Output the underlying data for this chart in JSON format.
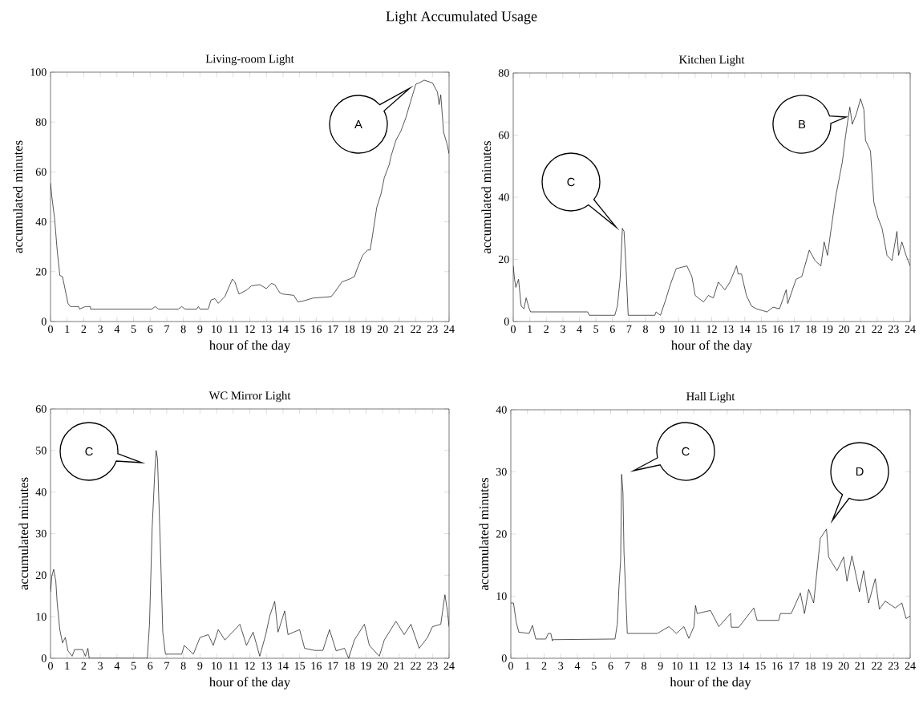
{
  "chart_data": [
    {
      "type": "line",
      "title": "Living-room Light",
      "xlabel": "hour of the day",
      "ylabel": "accumulated minutes",
      "xlim": [
        0,
        24
      ],
      "xticks": [
        0,
        1,
        2,
        3,
        4,
        5,
        6,
        7,
        8,
        9,
        10,
        11,
        12,
        13,
        14,
        15,
        16,
        17,
        18,
        19,
        20,
        21,
        22,
        23,
        24
      ],
      "ylim": [
        0,
        100
      ],
      "yticks": [
        0,
        20,
        40,
        60,
        80,
        100
      ],
      "annotations": [
        "Light Accumulated Usage",
        "A"
      ],
      "series": [
        {
          "color": "#000000",
          "x": [
            0,
            0.08,
            0.24,
            0.4,
            0.56,
            0.72,
            0.89,
            1.05,
            1.2,
            1.7,
            1.74,
            2.1,
            2.4,
            2.41,
            6.1,
            6.3,
            6.5,
            7.7,
            7.9,
            8.1,
            8.8,
            8.9,
            9.0,
            9.5,
            9.66,
            9.9,
            10.1,
            10.5,
            10.6,
            10.95,
            11.1,
            11.35,
            11.8,
            12.1,
            12.6,
            13.0,
            13.3,
            13.5,
            13.8,
            14.0,
            14.65,
            14.9,
            15.3,
            15.8,
            16.9,
            17.15,
            17.55,
            18.0,
            18.3,
            18.5,
            18.8,
            19.1,
            19.25,
            19.4,
            19.65,
            19.9,
            20.1,
            20.4,
            20.5,
            20.8,
            21.1,
            21.4,
            21.66,
            22.0,
            22.2,
            22.5,
            23.0,
            23.3,
            23.4,
            23.5,
            23.67,
            23.86,
            24
          ],
          "values": [
            55.5,
            50,
            41.6,
            28.7,
            18.5,
            18,
            12.6,
            7.3,
            6,
            6,
            5,
            6,
            6,
            5,
            5,
            6,
            5,
            5,
            6,
            5,
            5,
            6,
            5,
            5,
            8.6,
            9.2,
            7.3,
            10,
            11.6,
            17,
            15.9,
            11,
            12.6,
            14.3,
            14.8,
            13.2,
            15.3,
            14.8,
            11.6,
            11,
            10.5,
            7.8,
            8.4,
            9.4,
            10,
            12.1,
            15.9,
            17,
            18,
            21.8,
            26.6,
            28.7,
            28.7,
            35,
            45.9,
            51.2,
            57.7,
            63,
            66.2,
            72.7,
            76.4,
            81.8,
            87.7,
            95.2,
            95.7,
            96.8,
            95.7,
            92,
            87,
            90.9,
            75.9,
            71.6,
            67.3
          ]
        }
      ]
    },
    {
      "type": "line",
      "title": "Kitchen Light",
      "xlabel": "hour of the day",
      "ylabel": "accumulated minutes",
      "xlim": [
        0,
        24
      ],
      "xticks": [
        0,
        1,
        2,
        3,
        4,
        5,
        6,
        7,
        8,
        9,
        10,
        11,
        12,
        13,
        14,
        15,
        16,
        17,
        18,
        19,
        20,
        21,
        22,
        23,
        24
      ],
      "ylim": [
        0,
        80
      ],
      "yticks": [
        0,
        20,
        40,
        60,
        80
      ],
      "annotations": [
        "C",
        "B"
      ],
      "series": [
        {
          "color": "#000000",
          "x": [
            0,
            0.08,
            0.16,
            0.32,
            0.48,
            0.65,
            0.78,
            0.97,
            1.05,
            4.5,
            4.6,
            6.14,
            6.3,
            6.46,
            6.6,
            6.7,
            6.8,
            6.95,
            8.56,
            8.64,
            8.9,
            9.2,
            9.5,
            9.85,
            10.2,
            10.5,
            10.8,
            11.0,
            11.5,
            11.8,
            12.1,
            12.4,
            12.8,
            13.1,
            13.5,
            13.6,
            13.8,
            14.1,
            14.4,
            14.7,
            15.35,
            15.7,
            16.1,
            16.5,
            16.6,
            17.1,
            17.45,
            17.9,
            18.25,
            18.6,
            18.8,
            19.0,
            19.2,
            19.5,
            19.9,
            20.1,
            20.35,
            20.5,
            20.75,
            21.0,
            21.2,
            21.3,
            21.6,
            21.8,
            22.05,
            22.3,
            22.6,
            22.9,
            23.2,
            23.3,
            23.5,
            23.75,
            24
          ],
          "values": [
            17.9,
            13.6,
            11,
            13.6,
            5,
            4.1,
            7.6,
            4.1,
            3.1,
            3.1,
            2,
            2,
            5,
            13.6,
            30,
            29,
            19.6,
            2,
            2,
            3.1,
            2,
            6.7,
            11.9,
            17,
            17.5,
            17.9,
            14.5,
            8.4,
            6.3,
            8.4,
            7.6,
            12.7,
            10.2,
            12.7,
            17.9,
            15.3,
            15.3,
            8.4,
            5,
            4.1,
            3.1,
            4.6,
            4.1,
            10.2,
            5.8,
            13.6,
            14.5,
            23,
            19.6,
            17.9,
            25.6,
            21.3,
            29,
            40.3,
            51.4,
            60,
            69,
            63.5,
            66.9,
            71.7,
            68.2,
            58.3,
            54.9,
            38.5,
            33.4,
            30,
            21.3,
            19.6,
            29,
            21.3,
            25.6,
            21.3,
            17.9
          ]
        }
      ]
    },
    {
      "type": "line",
      "title": "WC Mirror Light",
      "xlabel": "hour of the day",
      "ylabel": "accumulated minutes",
      "xlim": [
        0,
        24
      ],
      "xticks": [
        0,
        1,
        2,
        3,
        4,
        5,
        6,
        7,
        8,
        9,
        10,
        11,
        12,
        13,
        14,
        15,
        16,
        17,
        18,
        19,
        20,
        21,
        22,
        23,
        24
      ],
      "ylim": [
        0,
        60
      ],
      "yticks": [
        0,
        10,
        20,
        30,
        40,
        50,
        60
      ],
      "annotations": [
        "C"
      ],
      "series": [
        {
          "color": "#000000",
          "x": [
            0,
            0.08,
            0.19,
            0.32,
            0.4,
            0.56,
            0.72,
            0.89,
            1.05,
            1.3,
            1.45,
            1.93,
            2.1,
            2.25,
            2.33,
            5.83,
            5.96,
            6.12,
            6.28,
            6.36,
            6.44,
            6.6,
            6.76,
            6.92,
            7.9,
            8.05,
            8.6,
            9.0,
            9.5,
            9.8,
            10.1,
            10.5,
            11.1,
            11.4,
            11.8,
            12.2,
            12.6,
            12.96,
            13.2,
            13.5,
            13.7,
            14.1,
            14.3,
            15.0,
            15.3,
            15.9,
            16.4,
            16.8,
            17.2,
            17.7,
            17.95,
            18.3,
            18.9,
            19.2,
            19.8,
            20.1,
            20.8,
            21.3,
            21.7,
            22.2,
            22.7,
            23.0,
            23.5,
            23.75,
            23.9,
            24
          ],
          "values": [
            16,
            19.8,
            21.4,
            18.5,
            13.4,
            6.9,
            3.7,
            5,
            1.8,
            0.5,
            2.1,
            2.1,
            0.5,
            2.4,
            0,
            0,
            8.2,
            31.4,
            44.9,
            50,
            48.1,
            28.8,
            6.3,
            1,
            1,
            3.1,
            1,
            5,
            5.7,
            3.1,
            6.9,
            4.4,
            6.9,
            8.2,
            3.1,
            6.3,
            0.5,
            5.7,
            10.2,
            13.7,
            6.3,
            11.4,
            5.7,
            6.9,
            2.4,
            1.9,
            1.9,
            6.9,
            1.8,
            2.4,
            0,
            4.4,
            8.2,
            3.1,
            0.5,
            4.4,
            8.9,
            5.7,
            8.2,
            2.4,
            5,
            7.6,
            8.2,
            15.3,
            11.4,
            7.6
          ]
        }
      ]
    },
    {
      "type": "line",
      "title": "Hall Light",
      "xlabel": "hour of the day",
      "ylabel": "accumulated minutes",
      "xlim": [
        0,
        24
      ],
      "xticks": [
        0,
        1,
        2,
        3,
        4,
        5,
        6,
        7,
        8,
        9,
        10,
        11,
        12,
        13,
        14,
        15,
        16,
        17,
        18,
        19,
        20,
        21,
        22,
        23,
        24
      ],
      "ylim": [
        0,
        40
      ],
      "yticks": [
        0,
        10,
        20,
        30,
        40
      ],
      "annotations": [
        "C",
        "D"
      ],
      "series": [
        {
          "color": "#000000",
          "x": [
            0,
            0.16,
            0.32,
            0.48,
            1.1,
            1.3,
            1.5,
            2.1,
            2.25,
            2.4,
            2.5,
            2.52,
            6.26,
            6.4,
            6.5,
            6.6,
            6.66,
            6.74,
            6.8,
            6.9,
            7.0,
            8.8,
            9.5,
            9.95,
            10.4,
            10.7,
            11.0,
            11.1,
            11.2,
            12.0,
            12.5,
            13.2,
            13.25,
            13.7,
            14.6,
            14.8,
            16.1,
            16.2,
            16.85,
            17.4,
            17.65,
            17.9,
            18.2,
            18.6,
            18.97,
            19.1,
            19.3,
            19.6,
            20.0,
            20.2,
            20.5,
            20.95,
            21.2,
            21.5,
            21.9,
            22.15,
            22.5,
            23.1,
            23.5,
            23.75,
            24
          ],
          "values": [
            8.9,
            8.9,
            5.9,
            4.2,
            4,
            5.3,
            3.1,
            3.1,
            4,
            4,
            2.8,
            3,
            3.1,
            5.5,
            11.5,
            15.8,
            29.6,
            26.6,
            17.1,
            10.7,
            4,
            4,
            5.1,
            4,
            5.1,
            3.2,
            5.1,
            8.5,
            7.2,
            7.7,
            5.1,
            7.2,
            5,
            5,
            8.1,
            6.1,
            6.1,
            7.2,
            7.2,
            10.5,
            7.2,
            11.1,
            8.9,
            19.3,
            20.8,
            16.3,
            15.4,
            14.1,
            16.3,
            12.4,
            16.5,
            10.7,
            14.1,
            8.9,
            12.8,
            7.9,
            9.2,
            8.1,
            8.9,
            6.4,
            6.8
          ]
        }
      ]
    }
  ]
}
